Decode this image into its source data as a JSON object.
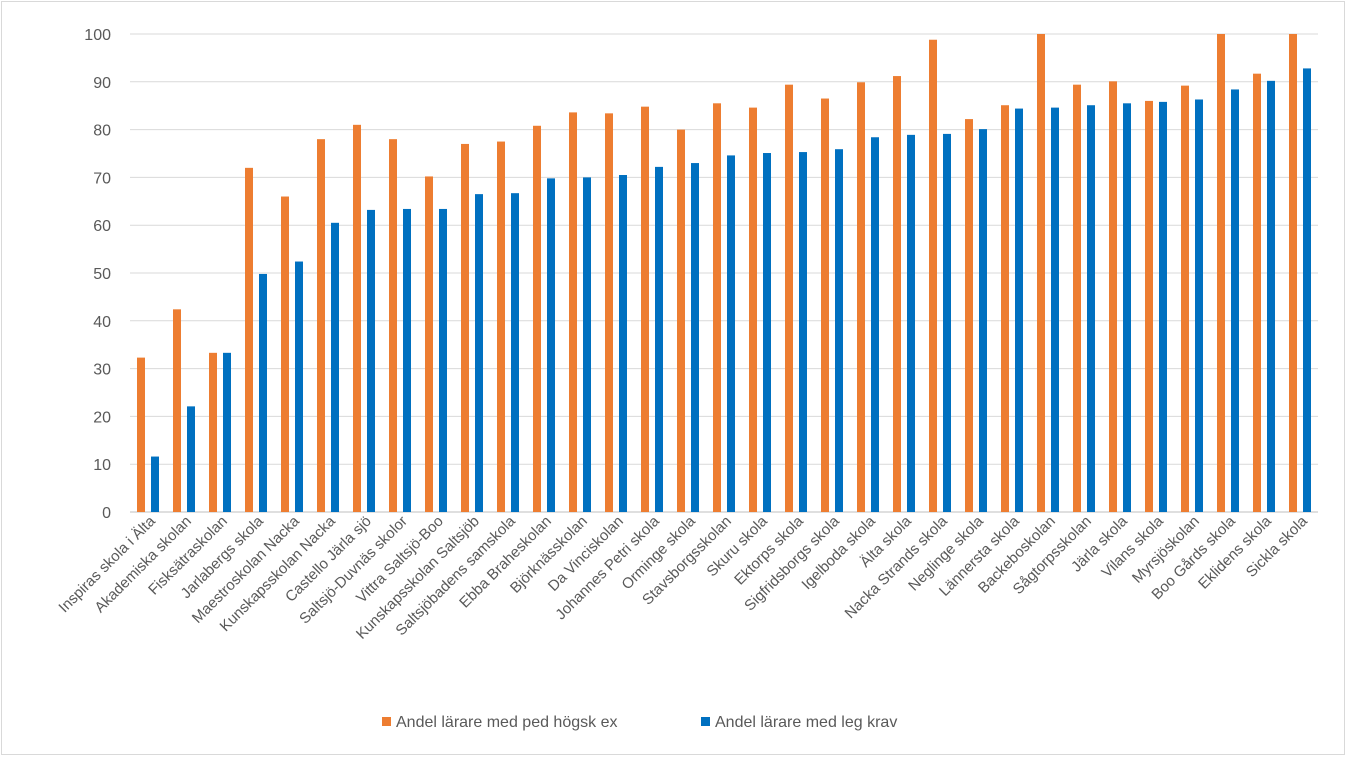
{
  "chart_data": {
    "type": "bar",
    "title": "",
    "xlabel": "",
    "ylabel": "",
    "ylim": [
      0,
      100
    ],
    "yticks": [
      0,
      10,
      20,
      30,
      40,
      50,
      60,
      70,
      80,
      90,
      100
    ],
    "grid": true,
    "legend_position": "bottom",
    "categories": [
      "Inspiras skola i Älta",
      "Akademiska skolan",
      "Fisksätraskolan",
      "Jarlabergs skola",
      "Maestroskolan Nacka",
      "Kunskapsskolan Nacka",
      "Castello Järla sjö",
      "Saltsjö-Duvnäs skolor",
      "Vittra Saltsjö-Boo",
      "Kunskapsskolan Saltsjöb",
      "Saltsjöbadens samskola",
      "Ebba Braheskolan",
      "Björknässkolan",
      "Da Vinciskolan",
      "Johannes Petri skola",
      "Orminge skola",
      "Stavsborgsskolan",
      "Skuru skola",
      "Ektorps skola",
      "Sigfridsborgs skola",
      "Igelboda skola",
      "Älta skola",
      "Nacka Strands skola",
      "Neglinge skola",
      "Lännersta skola",
      "Backeboskolan",
      "Sågtorpsskolan",
      "Järla skola",
      "Vilans skola",
      "Myrsjöskolan",
      "Boo Gårds skola",
      "Eklidens skola",
      "Sickla skola"
    ],
    "series": [
      {
        "name": "Andel lärare med ped högsk ex",
        "color": "#ed7d31",
        "values": [
          32.3,
          42.4,
          33.3,
          72.0,
          66.0,
          78.0,
          81.0,
          78.0,
          70.2,
          77.0,
          77.5,
          80.8,
          83.6,
          83.4,
          84.8,
          80.0,
          85.5,
          84.6,
          89.4,
          86.5,
          89.9,
          91.2,
          98.8,
          82.2,
          85.1,
          100.0,
          89.4,
          90.1,
          86.0,
          89.2,
          100.0,
          91.7,
          100.0
        ]
      },
      {
        "name": "Andel lärare med leg krav",
        "color": "#0070c0",
        "values": [
          11.6,
          22.1,
          33.3,
          49.8,
          52.4,
          60.5,
          63.2,
          63.4,
          63.4,
          66.5,
          66.7,
          69.8,
          70.0,
          70.5,
          72.2,
          73.0,
          74.6,
          75.1,
          75.3,
          75.9,
          78.4,
          78.9,
          79.1,
          80.1,
          84.4,
          84.6,
          85.1,
          85.5,
          85.8,
          86.3,
          88.4,
          90.2,
          92.8
        ]
      }
    ]
  }
}
